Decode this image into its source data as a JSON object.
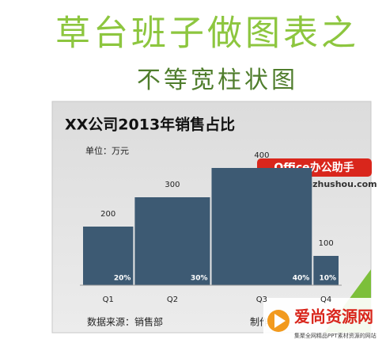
{
  "header": {
    "title": "草台班子做图表之",
    "subtitle": "不等宽柱状图"
  },
  "chart_data": {
    "type": "bar",
    "title": "XX公司2013年销售占比",
    "unit": "单位：万元",
    "categories": [
      "Q1",
      "Q2",
      "Q3",
      "Q4"
    ],
    "values": [
      200,
      300,
      400,
      100
    ],
    "widths": [
      20,
      30,
      40,
      10
    ],
    "width_labels": [
      "20%",
      "30%",
      "40%",
      "10%"
    ],
    "color": "#3d5a73",
    "source": "数据来源：销售部",
    "credit": "制作"
  },
  "watermarks": {
    "badge": "Office办公助手",
    "url": "www.officezhushou.com",
    "logo": "爱尚资源网",
    "tagline": "集聚全网精品PPT素材资源的网站"
  }
}
